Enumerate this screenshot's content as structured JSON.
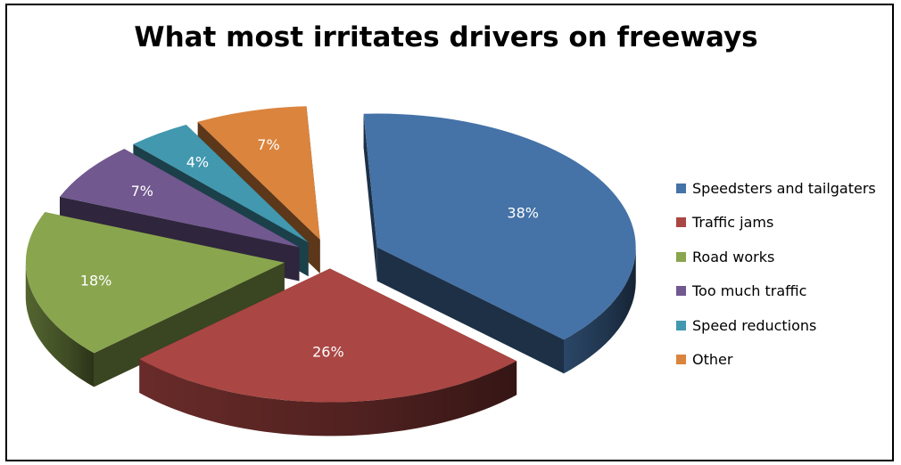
{
  "chart_data": {
    "type": "pie",
    "title": "What most irritates drivers on freeways",
    "categories": [
      "Speedsters and tailgaters",
      "Traffic jams",
      "Road works",
      "Too much traffic",
      "Speed reductions",
      "Other"
    ],
    "values": [
      38,
      26,
      18,
      7,
      4,
      7
    ],
    "labels": [
      "38%",
      "26%",
      "18%",
      "7%",
      "4%",
      "7%"
    ],
    "colors": [
      "#4572A7",
      "#AA4643",
      "#89A54E",
      "#71588F",
      "#4198AF",
      "#DB843D"
    ],
    "exploded": true,
    "three_d": true,
    "legend_position": "right"
  }
}
